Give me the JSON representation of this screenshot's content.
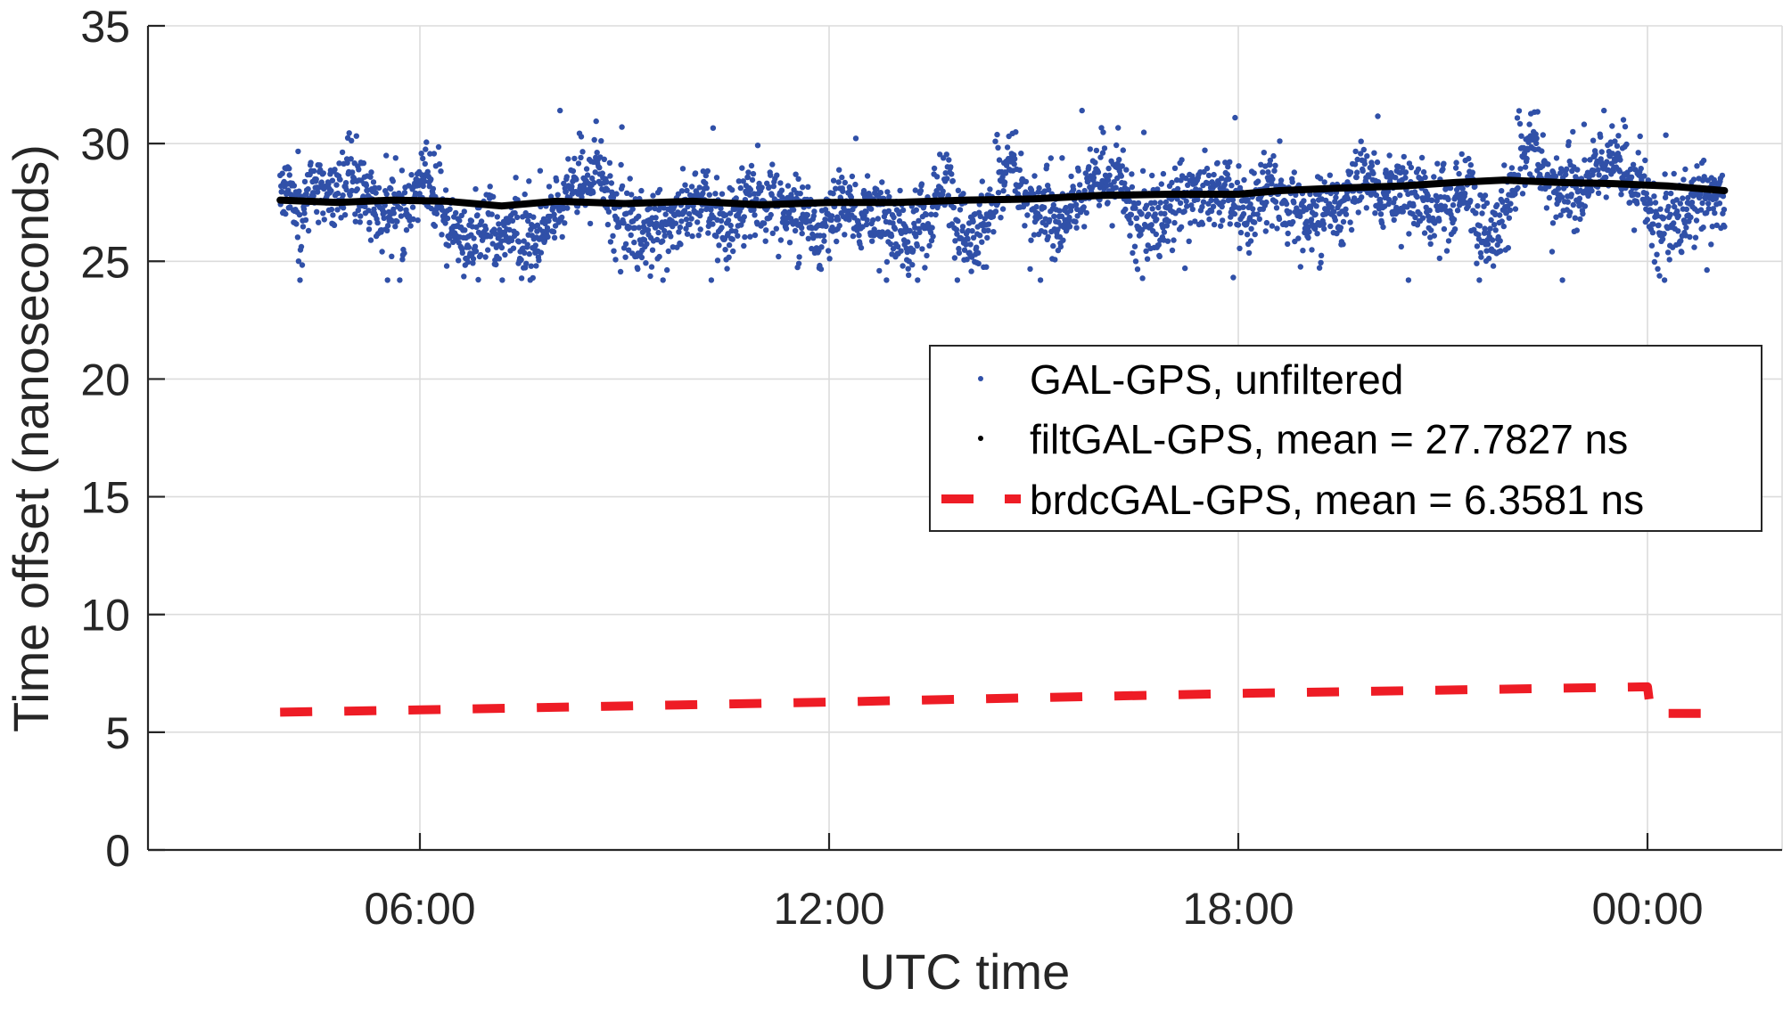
{
  "chart_data": {
    "type": "scatter",
    "title": "",
    "xlabel": "UTC time",
    "ylabel": "Time offset (nanoseconds)",
    "xlim_hours": [
      2.0,
      26.0
    ],
    "ylim": [
      0,
      35
    ],
    "grid": true,
    "legend_position": "inside right, centered vertically above mid",
    "x_ticks": [
      {
        "hours": 6,
        "label": "06:00"
      },
      {
        "hours": 12,
        "label": "12:00"
      },
      {
        "hours": 18,
        "label": "18:00"
      },
      {
        "hours": 24,
        "label": "00:00"
      }
    ],
    "y_ticks": [
      0,
      5,
      10,
      15,
      20,
      25,
      30,
      35
    ],
    "series": [
      {
        "name": "GAL-GPS, unfiltered",
        "style": "markers",
        "color": "#3050a8",
        "x_range_hours": [
          3.95,
          25.13
        ],
        "y_range": [
          24.2,
          31.4
        ],
        "typical_band": [
          25.5,
          30.0
        ]
      },
      {
        "name": "filtGAL-GPS, mean = 27.7827 ns",
        "style": "thick-line",
        "color": "#000000",
        "mean": 27.7827,
        "points": [
          [
            3.95,
            27.6
          ],
          [
            4.8,
            27.5
          ],
          [
            5.6,
            27.6
          ],
          [
            6.4,
            27.55
          ],
          [
            7.2,
            27.35
          ],
          [
            8.0,
            27.55
          ],
          [
            9.0,
            27.45
          ],
          [
            10.0,
            27.55
          ],
          [
            11.0,
            27.4
          ],
          [
            12.0,
            27.5
          ],
          [
            13.0,
            27.5
          ],
          [
            14.0,
            27.6
          ],
          [
            15.0,
            27.65
          ],
          [
            16.0,
            27.8
          ],
          [
            17.0,
            27.85
          ],
          [
            18.0,
            27.85
          ],
          [
            18.6,
            28.0
          ],
          [
            19.4,
            28.1
          ],
          [
            20.4,
            28.2
          ],
          [
            21.2,
            28.35
          ],
          [
            21.9,
            28.45
          ],
          [
            22.7,
            28.35
          ],
          [
            23.5,
            28.3
          ],
          [
            24.3,
            28.2
          ],
          [
            25.13,
            28.0
          ]
        ]
      },
      {
        "name": "brdcGAL-GPS, mean = 6.3581 ns",
        "style": "dashed-line",
        "color": "#ee1c25",
        "mean": 6.3581,
        "points": [
          [
            3.95,
            5.85
          ],
          [
            6.0,
            5.95
          ],
          [
            12.0,
            6.28
          ],
          [
            18.0,
            6.65
          ],
          [
            23.99,
            6.93
          ],
          [
            24.0,
            6.93
          ],
          [
            24.05,
            5.8
          ],
          [
            25.13,
            5.8
          ]
        ]
      }
    ]
  },
  "axes": {
    "x_title": "UTC time",
    "y_title": "Time offset (nanoseconds)",
    "y_tick_labels": [
      "0",
      "5",
      "10",
      "15",
      "20",
      "25",
      "30",
      "35"
    ],
    "x_tick_labels": [
      "06:00",
      "12:00",
      "18:00",
      "00:00"
    ]
  },
  "legend": {
    "items": [
      {
        "label": "GAL-GPS, unfiltered",
        "marker": "blue-dot",
        "color": "#3050a8"
      },
      {
        "label": "filtGAL-GPS, mean = 27.7827 ns",
        "marker": "black-dot",
        "color": "#000000"
      },
      {
        "label": "brdcGAL-GPS, mean = 6.3581 ns",
        "marker": "red-dash",
        "color": "#ee1c25"
      }
    ]
  }
}
